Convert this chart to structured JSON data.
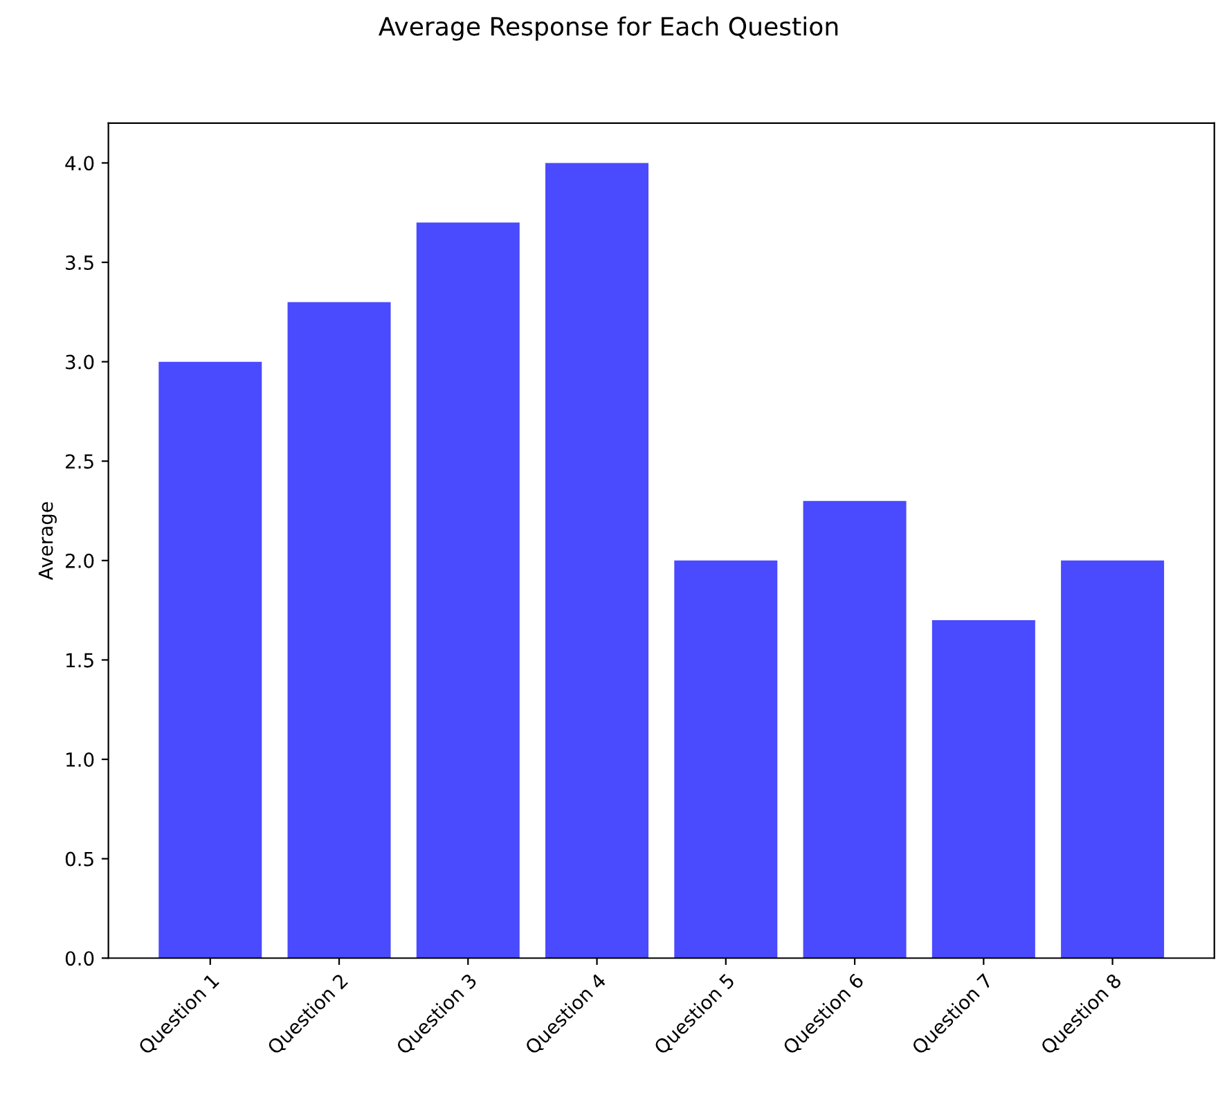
{
  "chart_data": {
    "type": "bar",
    "title": "Average Response for Each Question",
    "ylabel": "Average",
    "categories": [
      "Question 1",
      "Question 2",
      "Question 3",
      "Question 4",
      "Question 5",
      "Question 6",
      "Question 7",
      "Question 8"
    ],
    "values": [
      3.0,
      3.3,
      3.7,
      4.0,
      2.0,
      2.3,
      1.7,
      2.0
    ],
    "color": "#4a4aff",
    "ylim": [
      0,
      4.2
    ],
    "yticks": [
      {
        "value": 0,
        "label": "0.0"
      },
      {
        "value": 0.5,
        "label": "0.5"
      },
      {
        "value": 1,
        "label": "1.0"
      },
      {
        "value": 1.5,
        "label": "1.5"
      },
      {
        "value": 2,
        "label": "2.0"
      },
      {
        "value": 2.5,
        "label": "2.5"
      },
      {
        "value": 3,
        "label": "3.0"
      },
      {
        "value": 3.5,
        "label": "3.5"
      },
      {
        "value": 4,
        "label": "4.0"
      }
    ],
    "grid": false
  }
}
